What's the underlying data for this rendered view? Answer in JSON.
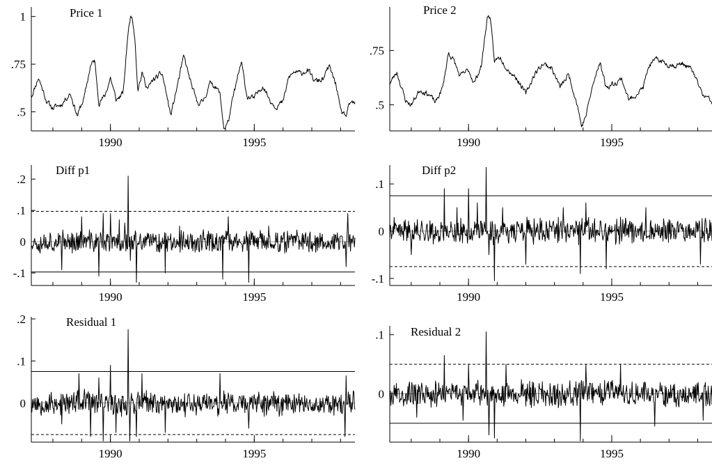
{
  "chart_data": [
    {
      "type": "line",
      "title": "Price 1",
      "x_range": [
        1987.25,
        1998.5
      ],
      "ylim": [
        0.4,
        1.05
      ],
      "yticks": [
        {
          "value": 0.5,
          "label": ".5"
        },
        {
          "value": 0.75,
          "label": ".75"
        },
        {
          "value": 1.0,
          "label": "1"
        }
      ],
      "xticks": [
        {
          "value": 1990,
          "label": "1990"
        },
        {
          "value": 1995,
          "label": "1995"
        }
      ],
      "hlines": [],
      "series": [
        {
          "kind": "level",
          "seed": 11,
          "base": 0.58,
          "vol": 0.012,
          "points": [
            [
              1987.25,
              0.58
            ],
            [
              1987.5,
              0.68
            ],
            [
              1987.8,
              0.55
            ],
            [
              1988.0,
              0.52
            ],
            [
              1988.3,
              0.54
            ],
            [
              1988.6,
              0.6
            ],
            [
              1988.85,
              0.48
            ],
            [
              1989.1,
              0.58
            ],
            [
              1989.3,
              0.74
            ],
            [
              1989.45,
              0.77
            ],
            [
              1989.6,
              0.55
            ],
            [
              1989.8,
              0.58
            ],
            [
              1990.0,
              0.68
            ],
            [
              1990.2,
              0.56
            ],
            [
              1990.45,
              0.6
            ],
            [
              1990.6,
              0.9
            ],
            [
              1990.72,
              1.02
            ],
            [
              1990.85,
              0.9
            ],
            [
              1990.95,
              0.62
            ],
            [
              1991.1,
              0.7
            ],
            [
              1991.3,
              0.62
            ],
            [
              1991.5,
              0.67
            ],
            [
              1991.8,
              0.7
            ],
            [
              1992.1,
              0.48
            ],
            [
              1992.3,
              0.62
            ],
            [
              1992.55,
              0.79
            ],
            [
              1992.8,
              0.65
            ],
            [
              1993.0,
              0.55
            ],
            [
              1993.2,
              0.55
            ],
            [
              1993.5,
              0.66
            ],
            [
              1993.8,
              0.6
            ],
            [
              1993.95,
              0.41
            ],
            [
              1994.1,
              0.45
            ],
            [
              1994.3,
              0.6
            ],
            [
              1994.55,
              0.76
            ],
            [
              1994.75,
              0.58
            ],
            [
              1995.0,
              0.57
            ],
            [
              1995.3,
              0.64
            ],
            [
              1995.55,
              0.56
            ],
            [
              1995.75,
              0.53
            ],
            [
              1996.0,
              0.55
            ],
            [
              1996.2,
              0.68
            ],
            [
              1996.4,
              0.71
            ],
            [
              1996.6,
              0.7
            ],
            [
              1996.85,
              0.72
            ],
            [
              1997.1,
              0.66
            ],
            [
              1997.4,
              0.67
            ],
            [
              1997.6,
              0.74
            ],
            [
              1997.85,
              0.64
            ],
            [
              1998.0,
              0.5
            ],
            [
              1998.2,
              0.48
            ],
            [
              1998.35,
              0.55
            ],
            [
              1998.5,
              0.54
            ]
          ]
        }
      ]
    },
    {
      "type": "line",
      "title": "Price 2",
      "x_range": [
        1987.25,
        1998.5
      ],
      "ylim": [
        0.38,
        0.95
      ],
      "yticks": [
        {
          "value": 0.5,
          "label": ".5"
        },
        {
          "value": 0.75,
          "label": ".75"
        }
      ],
      "xticks": [
        {
          "value": 1990,
          "label": "1990"
        },
        {
          "value": 1995,
          "label": "1995"
        }
      ],
      "hlines": [],
      "series": [
        {
          "kind": "level",
          "seed": 23,
          "base": 0.58,
          "vol": 0.01,
          "points": [
            [
              1987.25,
              0.6
            ],
            [
              1987.5,
              0.65
            ],
            [
              1987.8,
              0.52
            ],
            [
              1988.0,
              0.5
            ],
            [
              1988.3,
              0.57
            ],
            [
              1988.6,
              0.55
            ],
            [
              1988.85,
              0.51
            ],
            [
              1989.1,
              0.58
            ],
            [
              1989.3,
              0.74
            ],
            [
              1989.5,
              0.7
            ],
            [
              1989.7,
              0.63
            ],
            [
              1990.0,
              0.66
            ],
            [
              1990.2,
              0.6
            ],
            [
              1990.45,
              0.68
            ],
            [
              1990.65,
              0.9
            ],
            [
              1990.75,
              0.91
            ],
            [
              1990.9,
              0.7
            ],
            [
              1991.1,
              0.72
            ],
            [
              1991.4,
              0.66
            ],
            [
              1991.7,
              0.62
            ],
            [
              1992.0,
              0.55
            ],
            [
              1992.3,
              0.64
            ],
            [
              1992.6,
              0.69
            ],
            [
              1992.9,
              0.67
            ],
            [
              1993.2,
              0.58
            ],
            [
              1993.5,
              0.64
            ],
            [
              1993.8,
              0.5
            ],
            [
              1993.95,
              0.4
            ],
            [
              1994.1,
              0.45
            ],
            [
              1994.3,
              0.57
            ],
            [
              1994.6,
              0.7
            ],
            [
              1994.8,
              0.58
            ],
            [
              1995.1,
              0.6
            ],
            [
              1995.35,
              0.62
            ],
            [
              1995.6,
              0.52
            ],
            [
              1995.85,
              0.55
            ],
            [
              1996.1,
              0.58
            ],
            [
              1996.3,
              0.68
            ],
            [
              1996.6,
              0.71
            ],
            [
              1996.9,
              0.69
            ],
            [
              1997.2,
              0.68
            ],
            [
              1997.5,
              0.69
            ],
            [
              1997.8,
              0.66
            ],
            [
              1998.0,
              0.6
            ],
            [
              1998.2,
              0.54
            ],
            [
              1998.35,
              0.53
            ],
            [
              1998.5,
              0.51
            ]
          ]
        }
      ]
    },
    {
      "type": "line",
      "title": "Diff p1",
      "x_range": [
        1987.25,
        1998.5
      ],
      "ylim": [
        -0.14,
        0.245
      ],
      "yticks": [
        {
          "value": -0.1,
          "label": "-.1"
        },
        {
          "value": 0,
          "label": "0"
        },
        {
          "value": 0.1,
          "label": ".1"
        },
        {
          "value": 0.2,
          "label": ".2"
        }
      ],
      "xticks": [
        {
          "value": 1990,
          "label": "1990"
        },
        {
          "value": 1995,
          "label": "1995"
        }
      ],
      "hlines": [
        {
          "value": 0.097,
          "style": "dashed"
        },
        {
          "value": -0.097,
          "style": "solid"
        },
        {
          "value": 0,
          "style": "thin"
        }
      ],
      "series": [
        {
          "kind": "noise",
          "seed": 37,
          "amp": 0.03,
          "spikes": [
            [
              1988.3,
              -0.09
            ],
            [
              1989.0,
              0.08
            ],
            [
              1989.6,
              -0.11
            ],
            [
              1989.75,
              0.09
            ],
            [
              1990.0,
              0.09
            ],
            [
              1990.3,
              0.07
            ],
            [
              1990.5,
              0.06
            ],
            [
              1990.62,
              0.21
            ],
            [
              1990.7,
              -0.06
            ],
            [
              1990.9,
              -0.13
            ],
            [
              1991.9,
              -0.1
            ],
            [
              1992.4,
              0.05
            ],
            [
              1993.9,
              -0.12
            ],
            [
              1994.1,
              0.08
            ],
            [
              1994.8,
              -0.13
            ],
            [
              1995.5,
              0.05
            ],
            [
              1998.25,
              0.09
            ],
            [
              1998.2,
              -0.08
            ]
          ]
        }
      ]
    },
    {
      "type": "line",
      "title": "Diff p2",
      "x_range": [
        1987.25,
        1998.5
      ],
      "ylim": [
        -0.115,
        0.14
      ],
      "yticks": [
        {
          "value": -0.1,
          "label": "-.1"
        },
        {
          "value": 0,
          "label": "0"
        },
        {
          "value": 0.1,
          "label": ".1"
        }
      ],
      "xticks": [
        {
          "value": 1990,
          "label": "1990"
        },
        {
          "value": 1995,
          "label": "1995"
        }
      ],
      "hlines": [
        {
          "value": 0.075,
          "style": "solid"
        },
        {
          "value": -0.075,
          "style": "dashed"
        },
        {
          "value": 0,
          "style": "thin"
        }
      ],
      "series": [
        {
          "kind": "noise",
          "seed": 41,
          "amp": 0.022,
          "spikes": [
            [
              1988.0,
              -0.05
            ],
            [
              1989.15,
              0.09
            ],
            [
              1989.6,
              0.05
            ],
            [
              1990.0,
              0.09
            ],
            [
              1990.3,
              0.06
            ],
            [
              1990.62,
              0.135
            ],
            [
              1990.72,
              -0.05
            ],
            [
              1990.9,
              -0.105
            ],
            [
              1991.2,
              0.05
            ],
            [
              1992.0,
              -0.07
            ],
            [
              1993.3,
              0.05
            ],
            [
              1993.9,
              -0.09
            ],
            [
              1994.1,
              0.06
            ],
            [
              1994.8,
              -0.08
            ],
            [
              1996.2,
              0.05
            ],
            [
              1998.1,
              -0.07
            ]
          ]
        }
      ]
    },
    {
      "type": "line",
      "title": "Residual 1",
      "x_range": [
        1987.25,
        1998.5
      ],
      "ylim": [
        -0.093,
        0.205
      ],
      "yticks": [
        {
          "value": 0,
          "label": "0"
        },
        {
          "value": 0.1,
          "label": ".1"
        },
        {
          "value": 0.2,
          "label": ".2"
        }
      ],
      "xticks": [
        {
          "value": 1990,
          "label": "1990"
        },
        {
          "value": 1995,
          "label": "1995"
        }
      ],
      "hlines": [
        {
          "value": 0.075,
          "style": "solid"
        },
        {
          "value": -0.075,
          "style": "dashed"
        },
        {
          "value": 0,
          "style": "thin"
        }
      ],
      "series": [
        {
          "kind": "noise",
          "seed": 53,
          "amp": 0.025,
          "spikes": [
            [
              1988.3,
              -0.05
            ],
            [
              1988.9,
              0.07
            ],
            [
              1989.3,
              -0.08
            ],
            [
              1989.6,
              0.06
            ],
            [
              1989.75,
              -0.09
            ],
            [
              1990.0,
              0.09
            ],
            [
              1990.2,
              -0.07
            ],
            [
              1990.62,
              0.175
            ],
            [
              1990.68,
              -0.09
            ],
            [
              1990.9,
              -0.08
            ],
            [
              1991.1,
              0.07
            ],
            [
              1991.9,
              -0.07
            ],
            [
              1993.8,
              0.07
            ],
            [
              1994.8,
              -0.06
            ],
            [
              1998.2,
              0.065
            ],
            [
              1998.15,
              -0.08
            ]
          ]
        }
      ]
    },
    {
      "type": "line",
      "title": "Residual 2",
      "x_range": [
        1987.25,
        1998.5
      ],
      "ylim": [
        -0.082,
        0.115
      ],
      "yticks": [
        {
          "value": 0,
          "label": "0"
        },
        {
          "value": 0.1,
          "label": ".1"
        }
      ],
      "xticks": [
        {
          "value": 1990,
          "label": "1990"
        },
        {
          "value": 1995,
          "label": "1995"
        }
      ],
      "hlines": [
        {
          "value": 0.05,
          "style": "dashed"
        },
        {
          "value": -0.05,
          "style": "solid"
        },
        {
          "value": 0,
          "style": "thin"
        }
      ],
      "series": [
        {
          "kind": "noise",
          "seed": 67,
          "amp": 0.018,
          "spikes": [
            [
              1988.2,
              -0.04
            ],
            [
              1989.15,
              0.065
            ],
            [
              1989.8,
              -0.045
            ],
            [
              1990.0,
              0.05
            ],
            [
              1990.62,
              0.105
            ],
            [
              1990.72,
              -0.07
            ],
            [
              1990.9,
              -0.075
            ],
            [
              1991.3,
              0.05
            ],
            [
              1993.9,
              -0.08
            ],
            [
              1994.1,
              0.05
            ],
            [
              1995.3,
              0.05
            ],
            [
              1996.5,
              -0.055
            ],
            [
              1998.2,
              -0.045
            ]
          ]
        }
      ]
    }
  ]
}
